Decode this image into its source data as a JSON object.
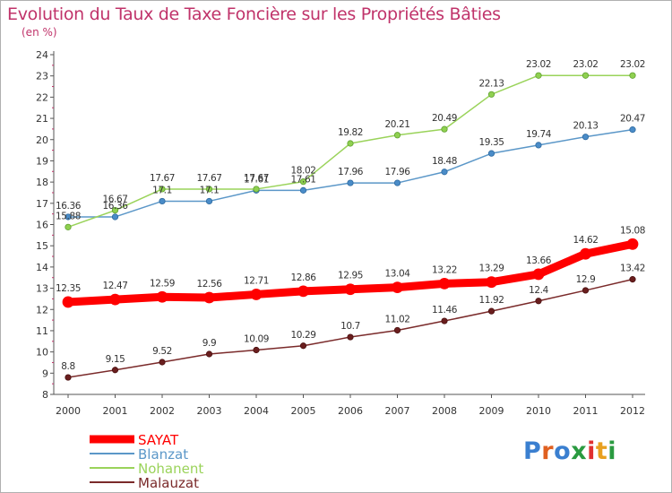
{
  "title": "Evolution du Taux de Taxe Foncière sur les Propriétés Bâties",
  "unit_label": "(en %)",
  "logo_text": "Proxiti",
  "chart_data": {
    "type": "line",
    "title": "Evolution du Taux de Taxe Foncière sur les Propriétés Bâties",
    "ylabel": "(en %)",
    "xlabel": "",
    "ylim": [
      8,
      24
    ],
    "yticks": [
      8,
      9,
      10,
      11,
      12,
      13,
      14,
      15,
      16,
      17,
      18,
      19,
      20,
      21,
      22,
      23,
      24
    ],
    "x": [
      "2000",
      "2001",
      "2002",
      "2003",
      "2004",
      "2005",
      "2006",
      "2007",
      "2008",
      "2009",
      "2010",
      "2011",
      "2012"
    ],
    "grid": false,
    "legend_position": "bottom-left",
    "series": [
      {
        "name": "SAYAT",
        "color": "#ff0000",
        "values": [
          12.35,
          12.47,
          12.59,
          12.56,
          12.71,
          12.86,
          12.95,
          13.04,
          13.22,
          13.29,
          13.66,
          14.62,
          15.08
        ],
        "labels": [
          "12.35",
          "12.47",
          "12.59",
          "12.56",
          "12.71",
          "12.86",
          "12.95",
          "13.04",
          "13.22",
          "13.29",
          "13.66",
          "14.62",
          "15.08"
        ]
      },
      {
        "name": "Blanzat",
        "color": "#5b97c8",
        "values": [
          16.36,
          16.36,
          17.1,
          17.1,
          17.61,
          17.61,
          17.96,
          17.96,
          18.48,
          19.35,
          19.74,
          20.13,
          20.47
        ],
        "labels": [
          "16.36",
          "16.36",
          "17.1",
          "17.1",
          "17.61",
          "17.61",
          "17.96",
          "17.96",
          "18.48",
          "19.35",
          "19.74",
          "20.13",
          "20.47"
        ]
      },
      {
        "name": "Nohanent",
        "color": "#9ad35a",
        "values": [
          15.88,
          16.67,
          17.67,
          17.67,
          17.67,
          18.02,
          19.82,
          20.21,
          20.49,
          22.13,
          23.02,
          23.02,
          23.02
        ],
        "labels": [
          "15.88",
          "16.67",
          "17.67",
          "17.67",
          "17.67",
          "18.02",
          "19.82",
          "20.21",
          "20.49",
          "22.13",
          "23.02",
          "23.02",
          "23.02"
        ]
      },
      {
        "name": "Malauzat",
        "color": "#7a2a2a",
        "values": [
          8.8,
          9.15,
          9.52,
          9.9,
          10.09,
          10.29,
          10.7,
          11.02,
          11.46,
          11.92,
          12.4,
          12.9,
          13.42
        ],
        "labels": [
          "8.8",
          "9.15",
          "9.52",
          "9.9",
          "10.09",
          "10.29",
          "10.7",
          "11.02",
          "11.46",
          "11.92",
          "12.4",
          "12.9",
          "13.42"
        ]
      }
    ]
  }
}
